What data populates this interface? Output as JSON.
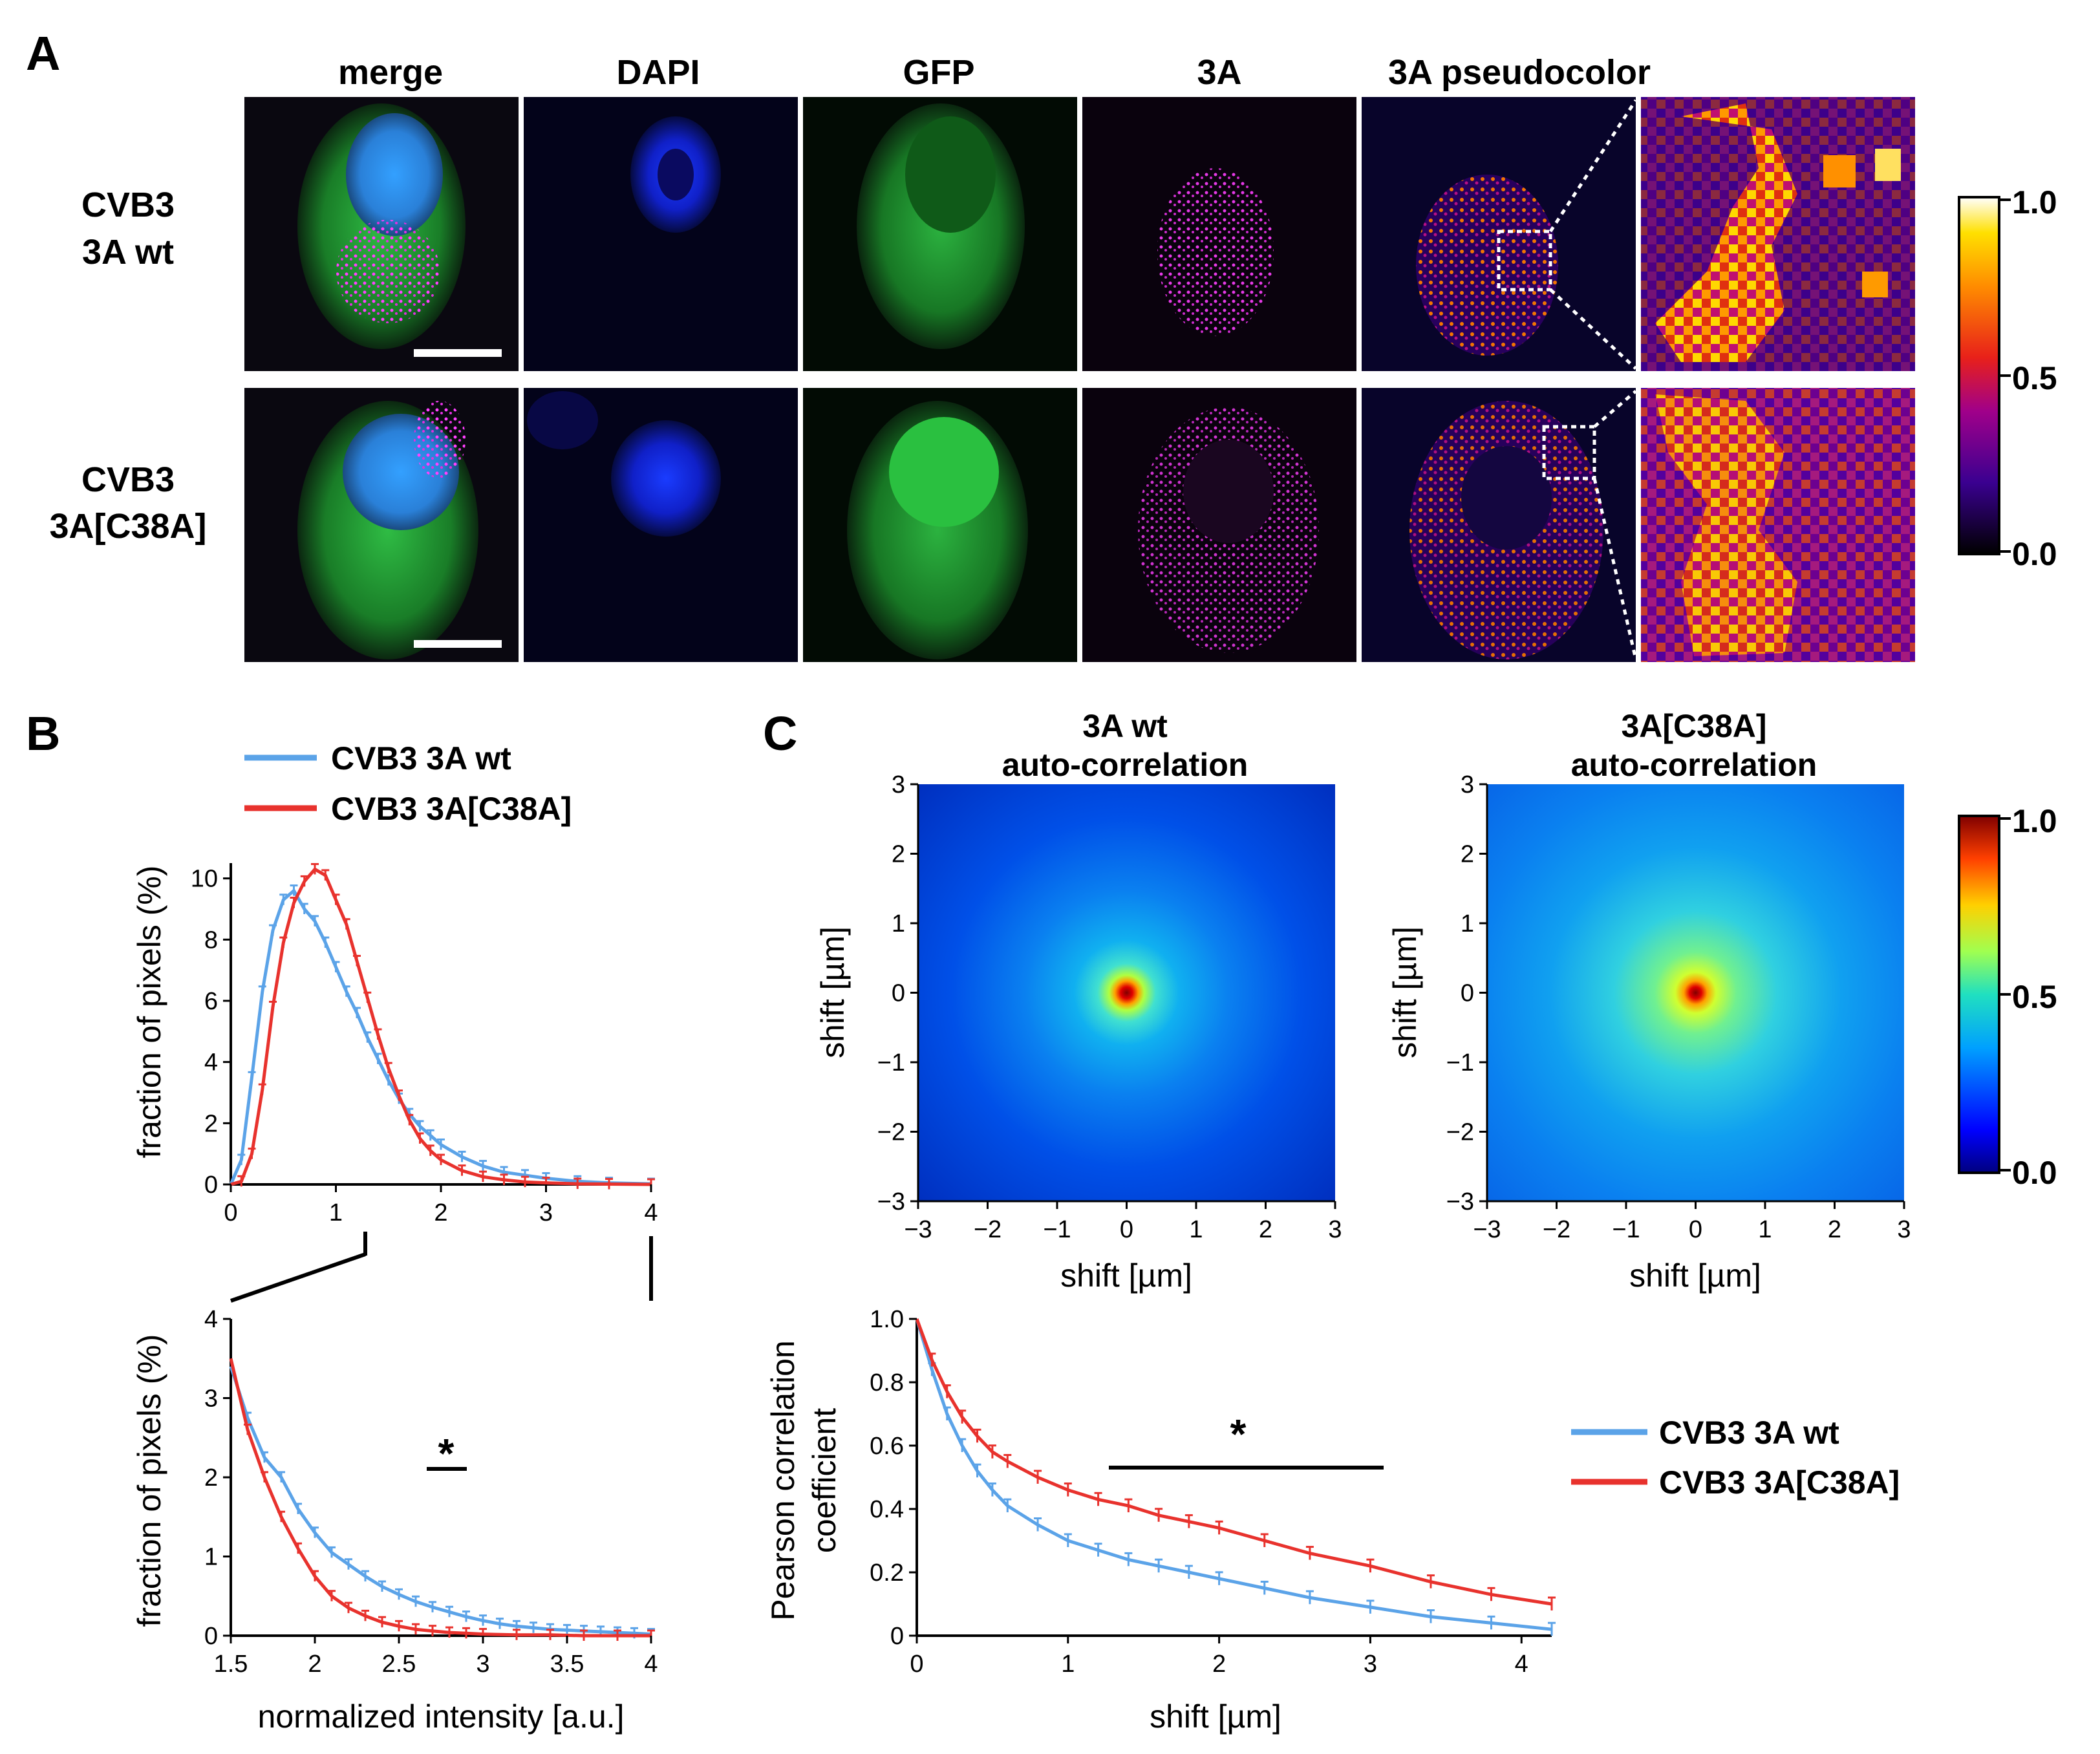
{
  "panels": {
    "a": "A",
    "b": "B",
    "c": "C"
  },
  "panel_a": {
    "columns": [
      "merge",
      "DAPI",
      "GFP",
      "3A",
      "3A pseudocolor"
    ],
    "rows": [
      {
        "line1": "CVB3",
        "line2": "3A wt"
      },
      {
        "line1": "CVB3",
        "line2": "3A[C38A]"
      }
    ],
    "colorbar": {
      "ticks": [
        "1.0",
        "0.5",
        "0.0"
      ],
      "colormap": "fire"
    }
  },
  "panel_b": {
    "legend": [
      {
        "label": "CVB3 3A wt",
        "color": "#5ba3e8"
      },
      {
        "label": "CVB3 3A[C38A]",
        "color": "#e8322d"
      }
    ],
    "significance": "*"
  },
  "panel_c": {
    "maps": [
      {
        "title_line1": "3A wt",
        "title_line2": "auto-correlation"
      },
      {
        "title_line1": "3A[C38A]",
        "title_line2": "auto-correlation"
      }
    ],
    "colorbar": {
      "ticks": [
        "1.0",
        "0.5",
        "0.0"
      ],
      "colormap": "jet"
    },
    "legend": [
      {
        "label": "CVB3 3A wt",
        "color": "#5ba3e8"
      },
      {
        "label": "CVB3 3A[C38A]",
        "color": "#e8322d"
      }
    ],
    "significance": "*"
  },
  "chart_data": [
    {
      "type": "line",
      "id": "B-top",
      "xlabel": "",
      "ylabel": "fraction of pixels (%)",
      "xlim": [
        0,
        4
      ],
      "ylim": [
        0,
        10.5
      ],
      "xticks": [
        "0",
        "1",
        "2",
        "3",
        "4"
      ],
      "yticks": [
        "0",
        "2",
        "4",
        "6",
        "8",
        "10"
      ],
      "series": [
        {
          "name": "CVB3 3A wt",
          "color": "#5ba3e8",
          "x": [
            0,
            0.1,
            0.2,
            0.3,
            0.4,
            0.5,
            0.6,
            0.7,
            0.8,
            0.9,
            1.0,
            1.1,
            1.2,
            1.3,
            1.4,
            1.5,
            1.6,
            1.7,
            1.8,
            1.9,
            2.0,
            2.2,
            2.4,
            2.6,
            2.8,
            3.0,
            3.3,
            3.6,
            4.0
          ],
          "y": [
            0,
            0.8,
            3.5,
            6.3,
            8.3,
            9.3,
            9.6,
            9.0,
            8.6,
            7.9,
            7.1,
            6.3,
            5.6,
            4.8,
            4.1,
            3.4,
            2.8,
            2.3,
            1.9,
            1.6,
            1.3,
            0.9,
            0.6,
            0.4,
            0.3,
            0.2,
            0.1,
            0.05,
            0.02
          ]
        },
        {
          "name": "CVB3 3A[C38A]",
          "color": "#e8322d",
          "x": [
            0,
            0.1,
            0.2,
            0.3,
            0.4,
            0.5,
            0.6,
            0.7,
            0.8,
            0.9,
            1.0,
            1.1,
            1.2,
            1.3,
            1.4,
            1.5,
            1.6,
            1.7,
            1.8,
            1.9,
            2.0,
            2.2,
            2.4,
            2.6,
            2.8,
            3.0,
            3.3,
            3.6,
            4.0
          ],
          "y": [
            0,
            0.1,
            1.0,
            3.1,
            5.8,
            7.9,
            9.2,
            9.9,
            10.3,
            10.1,
            9.3,
            8.5,
            7.3,
            6.1,
            4.9,
            3.8,
            2.9,
            2.1,
            1.5,
            1.1,
            0.8,
            0.45,
            0.25,
            0.15,
            0.08,
            0.05,
            0.02,
            0.01,
            0
          ]
        }
      ]
    },
    {
      "type": "line",
      "id": "B-bottom",
      "xlabel": "normalized intensity [a.u.]",
      "ylabel": "fraction of pixels (%)",
      "xlim": [
        1.5,
        4
      ],
      "ylim": [
        0,
        4
      ],
      "xticks": [
        "1.5",
        "2",
        "2.5",
        "3",
        "3.5",
        "4"
      ],
      "yticks": [
        "0",
        "1",
        "2",
        "3",
        "4"
      ],
      "series": [
        {
          "name": "CVB3 3A wt",
          "color": "#5ba3e8",
          "x": [
            1.5,
            1.6,
            1.7,
            1.8,
            1.9,
            2.0,
            2.1,
            2.2,
            2.3,
            2.4,
            2.5,
            2.6,
            2.7,
            2.8,
            2.9,
            3.0,
            3.1,
            3.2,
            3.3,
            3.4,
            3.5,
            3.6,
            3.7,
            3.8,
            3.9,
            4.0
          ],
          "y": [
            3.4,
            2.75,
            2.25,
            2.0,
            1.6,
            1.3,
            1.05,
            0.9,
            0.75,
            0.62,
            0.52,
            0.43,
            0.36,
            0.3,
            0.24,
            0.19,
            0.15,
            0.12,
            0.1,
            0.08,
            0.07,
            0.06,
            0.05,
            0.04,
            0.03,
            0.02
          ]
        },
        {
          "name": "CVB3 3A[C38A]",
          "color": "#e8322d",
          "x": [
            1.5,
            1.6,
            1.7,
            1.8,
            1.9,
            2.0,
            2.1,
            2.2,
            2.3,
            2.4,
            2.5,
            2.6,
            2.7,
            2.8,
            2.9,
            3.0,
            3.2,
            3.4,
            3.6,
            3.8,
            4.0
          ],
          "y": [
            3.5,
            2.6,
            2.0,
            1.5,
            1.1,
            0.75,
            0.5,
            0.35,
            0.25,
            0.17,
            0.12,
            0.08,
            0.06,
            0.04,
            0.03,
            0.02,
            0.01,
            0.01,
            0,
            0,
            0
          ]
        }
      ]
    },
    {
      "type": "heatmap",
      "id": "C-map-wt",
      "xlabel": "shift [µm]",
      "ylabel": "shift [µm]",
      "xlim": [
        -3,
        3
      ],
      "ylim": [
        -3,
        3
      ],
      "xticks": [
        "−3",
        "−2",
        "−1",
        "0",
        "1",
        "2",
        "3"
      ],
      "yticks": [
        "3",
        "2",
        "1",
        "0",
        "−1",
        "−2",
        "−3"
      ],
      "peak": 1.0,
      "center": [
        0,
        0
      ]
    },
    {
      "type": "heatmap",
      "id": "C-map-c38a",
      "xlabel": "shift [µm]",
      "ylabel": "shift [µm]",
      "xlim": [
        -3,
        3
      ],
      "ylim": [
        -3,
        3
      ],
      "xticks": [
        "−3",
        "−2",
        "−1",
        "0",
        "1",
        "2",
        "3"
      ],
      "yticks": [
        "3",
        "2",
        "1",
        "0",
        "−1",
        "−2",
        "−3"
      ],
      "peak": 1.0,
      "center": [
        0,
        0
      ]
    },
    {
      "type": "line",
      "id": "C-curve",
      "xlabel": "shift [µm]",
      "ylabel_line1": "Pearson correlation",
      "ylabel_line2": "coefficient",
      "xlim": [
        0,
        4.2
      ],
      "ylim": [
        0,
        1
      ],
      "xticks": [
        "0",
        "1",
        "2",
        "3",
        "4"
      ],
      "yticks": [
        "0",
        "0.2",
        "0.4",
        "0.6",
        "0.8",
        "1.0"
      ],
      "series": [
        {
          "name": "CVB3 3A wt",
          "color": "#5ba3e8",
          "x": [
            0,
            0.1,
            0.2,
            0.3,
            0.4,
            0.5,
            0.6,
            0.8,
            1.0,
            1.2,
            1.4,
            1.6,
            1.8,
            2.0,
            2.3,
            2.6,
            3.0,
            3.4,
            3.8,
            4.2
          ],
          "y": [
            1.0,
            0.84,
            0.7,
            0.6,
            0.52,
            0.46,
            0.41,
            0.35,
            0.3,
            0.27,
            0.24,
            0.22,
            0.2,
            0.18,
            0.15,
            0.12,
            0.09,
            0.06,
            0.04,
            0.02
          ]
        },
        {
          "name": "CVB3 3A[C38A]",
          "color": "#e8322d",
          "x": [
            0,
            0.1,
            0.2,
            0.3,
            0.4,
            0.5,
            0.6,
            0.8,
            1.0,
            1.2,
            1.4,
            1.6,
            1.8,
            2.0,
            2.3,
            2.6,
            3.0,
            3.4,
            3.8,
            4.2
          ],
          "y": [
            1.0,
            0.87,
            0.77,
            0.69,
            0.63,
            0.58,
            0.55,
            0.5,
            0.46,
            0.43,
            0.41,
            0.38,
            0.36,
            0.34,
            0.3,
            0.26,
            0.22,
            0.17,
            0.13,
            0.1
          ]
        }
      ]
    }
  ]
}
